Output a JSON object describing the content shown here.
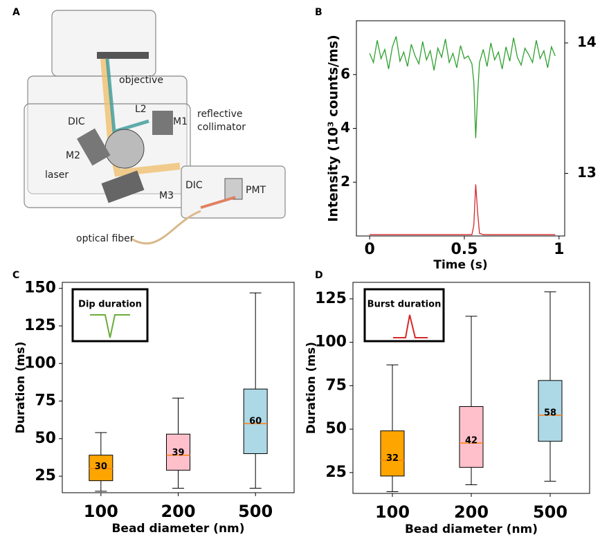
{
  "panel_labels": [
    "A",
    "B",
    "C",
    "D"
  ],
  "diagram": {
    "labels": [
      "objective",
      "L2",
      "DIC",
      "M1",
      "reflective",
      "collimator",
      "M2",
      "laser",
      "M3",
      "DIC",
      "PMT",
      "optical fiber"
    ]
  },
  "chart_data": [
    {
      "type": "line",
      "ylabel": "Intensity (10³ counts/ms)",
      "xlabel": "Time (s)",
      "xlim": [
        -0.07,
        1.03
      ],
      "xticks": [
        0,
        0.5,
        1
      ],
      "ylim": [
        0,
        8
      ],
      "yticks": [
        2,
        4,
        6
      ],
      "ytick_color": "#d62728",
      "y2lim": [
        12.52,
        14.17
      ],
      "y2ticks": [
        13,
        14
      ],
      "y2tick_color": "#2ca02c",
      "x": [
        0,
        0.02,
        0.04,
        0.06,
        0.08,
        0.1,
        0.12,
        0.14,
        0.16,
        0.18,
        0.2,
        0.22,
        0.24,
        0.26,
        0.28,
        0.3,
        0.32,
        0.34,
        0.36,
        0.38,
        0.4,
        0.42,
        0.44,
        0.46,
        0.48,
        0.5,
        0.52,
        0.54,
        0.55,
        0.56,
        0.57,
        0.58,
        0.6,
        0.62,
        0.64,
        0.66,
        0.68,
        0.7,
        0.72,
        0.74,
        0.76,
        0.78,
        0.8,
        0.82,
        0.84,
        0.86,
        0.88,
        0.9,
        0.92,
        0.94,
        0.96,
        0.98
      ],
      "series": [
        {
          "color": "#2ca02c",
          "axis": "y2",
          "values": [
            13.92,
            13.85,
            14.02,
            13.88,
            13.95,
            13.8,
            13.97,
            14.05,
            13.86,
            13.93,
            13.82,
            13.99,
            13.9,
            13.84,
            14.01,
            13.87,
            13.94,
            13.79,
            13.96,
            13.89,
            14.03,
            13.85,
            13.92,
            13.81,
            13.98,
            13.88,
            13.9,
            13.84,
            13.7,
            13.27,
            13.6,
            13.85,
            13.95,
            13.82,
            14.0,
            13.87,
            13.93,
            13.8,
            13.97,
            13.86,
            14.04,
            13.89,
            13.83,
            13.96,
            13.91,
            13.85,
            14.02,
            13.88,
            13.94,
            13.81,
            13.97,
            13.9
          ]
        },
        {
          "color": "#d62728",
          "values": [
            0.05,
            0.05,
            0.05,
            0.05,
            0.05,
            0.05,
            0.05,
            0.05,
            0.05,
            0.05,
            0.05,
            0.05,
            0.05,
            0.05,
            0.05,
            0.05,
            0.05,
            0.05,
            0.05,
            0.05,
            0.05,
            0.05,
            0.05,
            0.05,
            0.05,
            0.05,
            0.05,
            0.05,
            0.4,
            1.92,
            0.9,
            0.1,
            0.05,
            0.05,
            0.05,
            0.05,
            0.05,
            0.05,
            0.05,
            0.05,
            0.05,
            0.05,
            0.05,
            0.05,
            0.05,
            0.05,
            0.05,
            0.05,
            0.05,
            0.05,
            0.05,
            0.05
          ]
        }
      ]
    },
    {
      "type": "box",
      "ylabel": "Duration (ms)",
      "xlabel": "Bead diameter (nm)",
      "inset_label": "Dip duration",
      "categories": [
        "100",
        "200",
        "500"
      ],
      "colors": [
        "#ffa500",
        "#ffc0cb",
        "#add8e6"
      ],
      "median_color": "#ff7f0e",
      "ylim": [
        14,
        154
      ],
      "yticks": [
        25,
        50,
        75,
        100,
        125,
        150
      ],
      "boxes": [
        {
          "whislo": 15,
          "q1": 22,
          "median": 30,
          "q3": 39,
          "whishi": 54
        },
        {
          "whislo": 17,
          "q1": 29,
          "median": 39,
          "q3": 53,
          "whishi": 77
        },
        {
          "whislo": 17,
          "q1": 40,
          "median": 60,
          "q3": 83,
          "whishi": 147
        }
      ]
    },
    {
      "type": "box",
      "ylabel": "Duration (ms)",
      "xlabel": "Bead diameter (nm)",
      "inset_label": "Burst duration",
      "categories": [
        "100",
        "200",
        "500"
      ],
      "colors": [
        "#ffa500",
        "#ffc0cb",
        "#add8e6"
      ],
      "median_color": "#ff7f0e",
      "ylim": [
        13,
        134.5
      ],
      "yticks": [
        25,
        50,
        75,
        100,
        125
      ],
      "boxes": [
        {
          "whislo": 14,
          "q1": 23,
          "median": 32,
          "q3": 49,
          "whishi": 87
        },
        {
          "whislo": 18,
          "q1": 28,
          "median": 42,
          "q3": 63,
          "whishi": 115
        },
        {
          "whislo": 20,
          "q1": 43,
          "median": 58,
          "q3": 78,
          "whishi": 129
        }
      ]
    }
  ]
}
